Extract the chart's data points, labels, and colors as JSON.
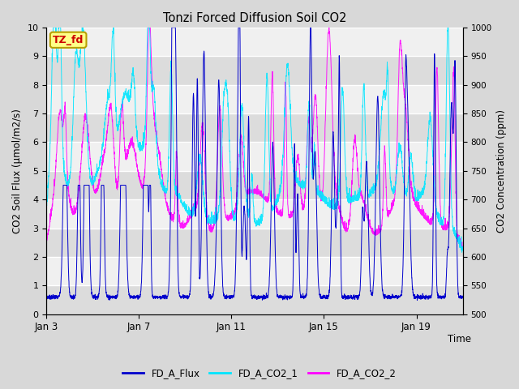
{
  "title": "Tonzi Forced Diffusion Soil CO2",
  "xlabel": "Time",
  "ylabel_left": "CO2 Soil Flux (μmol/m2/s)",
  "ylabel_right": "CO2 Concentration (ppm)",
  "ylim_left": [
    0.0,
    10.0
  ],
  "ylim_right": [
    500,
    1000
  ],
  "xtick_labels": [
    "Jan 3",
    "Jan 7",
    "Jan 11",
    "Jan 15",
    "Jan 19"
  ],
  "xtick_positions": [
    0,
    4,
    8,
    12,
    16
  ],
  "xlim": [
    0,
    18
  ],
  "legend_labels": [
    "FD_A_Flux",
    "FD_A_CO2_1",
    "FD_A_CO2_2"
  ],
  "line_colors": [
    "#0000cc",
    "#00e5ff",
    "#ff00ff"
  ],
  "tag_label": "TZ_fd",
  "tag_facecolor": "#ffff88",
  "tag_edgecolor": "#b8a000",
  "tag_textcolor": "#cc0000",
  "background_color": "#d8d8d8",
  "plot_bg_stripe_light": "#f0f0f0",
  "plot_bg_stripe_dark": "#dcdcdc",
  "grid_color": "#ffffff",
  "n_points": 3000,
  "seed": 7
}
